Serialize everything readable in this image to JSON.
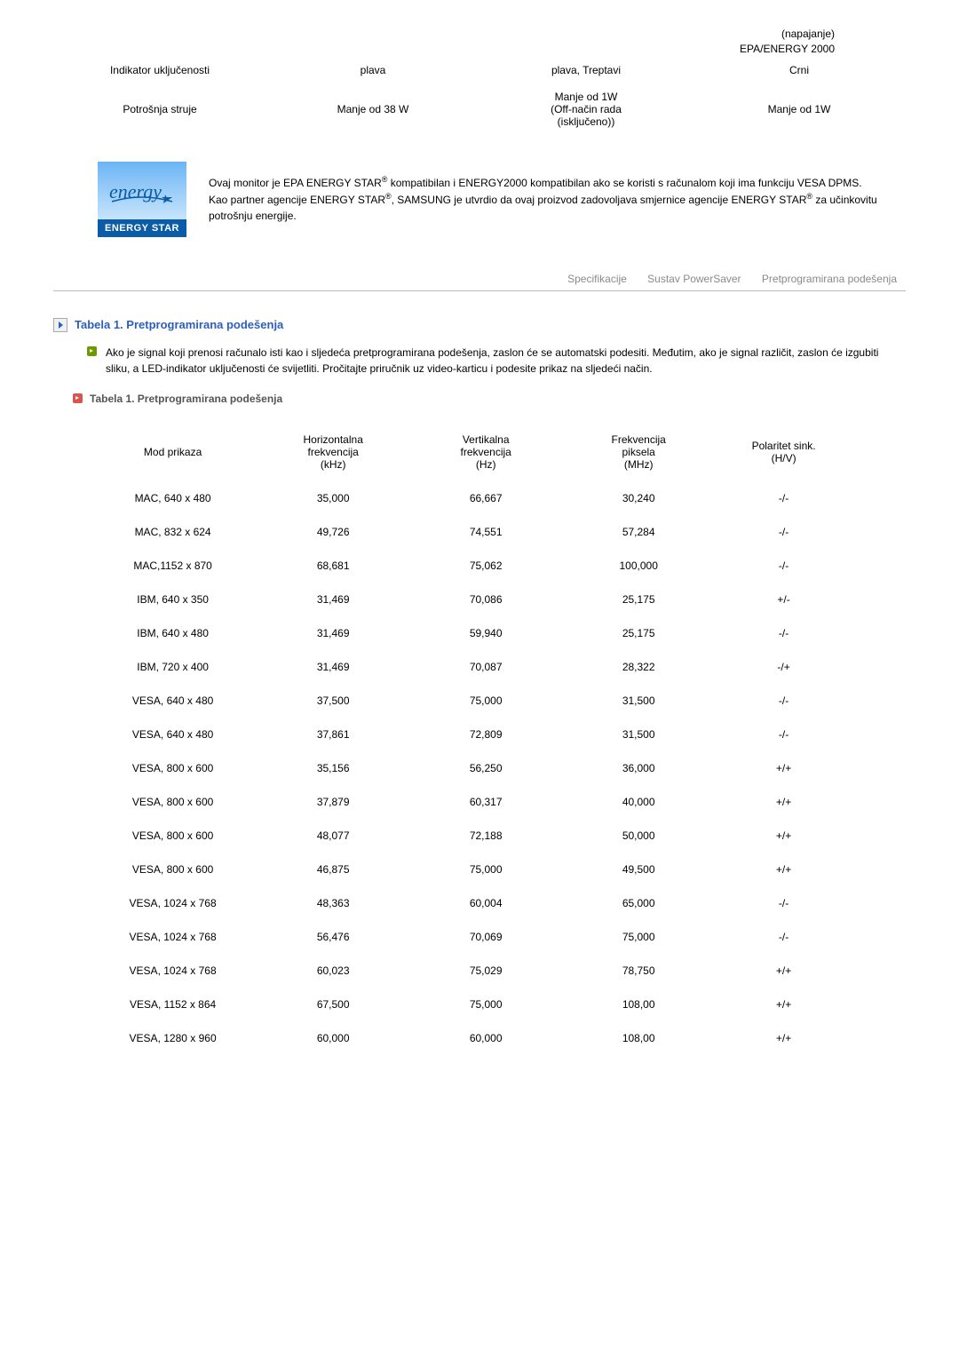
{
  "topRight": {
    "line1": "(napajanje)",
    "line2": "EPA/ENERGY 2000"
  },
  "spec": {
    "rows": [
      {
        "c0": "Indikator uključenosti",
        "c1": "plava",
        "c2": "plava, Treptavi",
        "c3": "Crni"
      },
      {
        "c0": "Potrošnja struje",
        "c1": "Manje od 38 W",
        "c2": "Manje od 1W\n(Off-način rada\n(isključeno))",
        "c3": "Manje od 1W"
      }
    ]
  },
  "energy": {
    "logo_script": "energy",
    "logo_label": "ENERGY STAR",
    "text_p1a": "Ovaj monitor je EPA ENERGY STAR",
    "text_p1b": " kompatibilan i ENERGY2000 kompatibilan ako se koristi s računalom koji ima funkciju VESA DPMS.",
    "text_p2a": "Kao partner agencije ENERGY STAR",
    "text_p2b": ", SAMSUNG je utvrdio da ovaj proizvod zadovoljava smjernice agencije ENERGY STAR",
    "text_p2c": " za učinkovitu potrošnju energije."
  },
  "tabs": {
    "t1": "Specifikacije",
    "t2": "Sustav PowerSaver",
    "t3": "Pretprogramirana podešenja"
  },
  "section": {
    "title": "Tabela 1. Pretprogramirana podešenja",
    "body": "Ako je signal koji prenosi računalo isti kao i sljedeća pretprogramirana podešenja, zaslon će se automatski podesiti. Međutim, ako je signal različit, zaslon će izgubiti sliku, a LED-indikator uključenosti će svijetliti. Pročitajte priručnik uz video-karticu i podesite prikaz na sljedeći način.",
    "sub": "Tabela 1. Pretprogramirana podešenja"
  },
  "table": {
    "headers": {
      "h0": "Mod prikaza",
      "h1": "Horizontalna\nfrekvencija\n(kHz)",
      "h2": "Vertikalna\nfrekvencija\n(Hz)",
      "h3": "Frekvencija\npiksela\n(MHz)",
      "h4": "Polaritet sink.\n(H/V)"
    },
    "rows": [
      {
        "c0": "MAC, 640 x 480",
        "c1": "35,000",
        "c2": "66,667",
        "c3": "30,240",
        "c4": "-/-"
      },
      {
        "c0": "MAC, 832 x 624",
        "c1": "49,726",
        "c2": "74,551",
        "c3": "57,284",
        "c4": "-/-"
      },
      {
        "c0": "MAC,1152 x 870",
        "c1": "68,681",
        "c2": "75,062",
        "c3": "100,000",
        "c4": "-/-"
      },
      {
        "c0": "IBM, 640 x 350",
        "c1": "31,469",
        "c2": "70,086",
        "c3": "25,175",
        "c4": "+/-"
      },
      {
        "c0": "IBM, 640 x 480",
        "c1": "31,469",
        "c2": "59,940",
        "c3": "25,175",
        "c4": "-/-"
      },
      {
        "c0": "IBM, 720 x 400",
        "c1": "31,469",
        "c2": "70,087",
        "c3": "28,322",
        "c4": "-/+"
      },
      {
        "c0": "VESA, 640 x 480",
        "c1": "37,500",
        "c2": "75,000",
        "c3": "31,500",
        "c4": "-/-"
      },
      {
        "c0": "VESA, 640 x 480",
        "c1": "37,861",
        "c2": "72,809",
        "c3": "31,500",
        "c4": "-/-"
      },
      {
        "c0": "VESA, 800 x 600",
        "c1": "35,156",
        "c2": "56,250",
        "c3": "36,000",
        "c4": "+/+"
      },
      {
        "c0": "VESA, 800 x 600",
        "c1": "37,879",
        "c2": "60,317",
        "c3": "40,000",
        "c4": "+/+"
      },
      {
        "c0": "VESA, 800 x 600",
        "c1": "48,077",
        "c2": "72,188",
        "c3": "50,000",
        "c4": "+/+"
      },
      {
        "c0": "VESA, 800 x 600",
        "c1": "46,875",
        "c2": "75,000",
        "c3": "49,500",
        "c4": "+/+"
      },
      {
        "c0": "VESA, 1024 x 768",
        "c1": "48,363",
        "c2": "60,004",
        "c3": "65,000",
        "c4": "-/-"
      },
      {
        "c0": "VESA, 1024 x 768",
        "c1": "56,476",
        "c2": "70,069",
        "c3": "75,000",
        "c4": "-/-"
      },
      {
        "c0": "VESA, 1024 x 768",
        "c1": "60,023",
        "c2": "75,029",
        "c3": "78,750",
        "c4": "+/+"
      },
      {
        "c0": "VESA, 1152 x 864",
        "c1": "67,500",
        "c2": "75,000",
        "c3": "108,00",
        "c4": "+/+"
      },
      {
        "c0": "VESA, 1280 x 960",
        "c1": "60,000",
        "c2": "60,000",
        "c3": "108,00",
        "c4": "+/+"
      }
    ]
  },
  "style": {
    "accent_blue": "#2b5fbf",
    "link_gray": "#8a8a8a",
    "green_bullet": "#6a9a00",
    "red_bullet": "#d9534f",
    "energy_blue": "#0a5ca8"
  }
}
